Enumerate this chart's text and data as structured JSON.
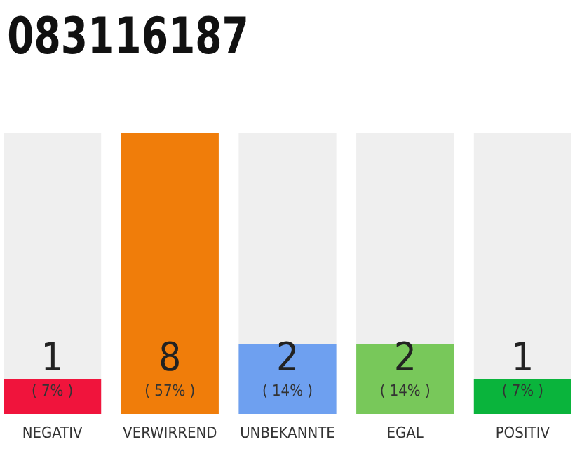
{
  "chart_data": {
    "type": "bar",
    "title": "083116187",
    "data_labels": true,
    "ylim": [
      0,
      8
    ],
    "tick_labels": "x",
    "categories": [
      "NEGATIV",
      "VERWIRREND",
      "UNBEKANNTE",
      "EGAL",
      "POSITIV"
    ],
    "values": [
      1,
      8,
      2,
      2,
      1
    ],
    "colors": [
      "#f0143c",
      "#f07d0a",
      "#6ea0f0",
      "#78c85a",
      "#0ab43c"
    ],
    "annotations": [
      "( 7% )",
      "( 57% )",
      "( 14% )",
      "( 14% )",
      "( 7% )"
    ]
  }
}
